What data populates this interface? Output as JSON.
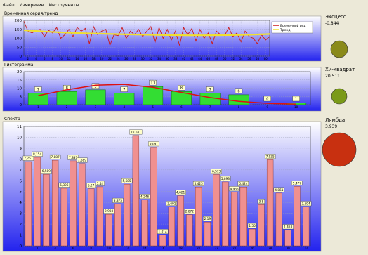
{
  "menu": [
    "Файл",
    "Измерение",
    "Инструменты"
  ],
  "panels": {
    "timeseries_title": "Временная серия/тренд",
    "histogram_title": "Гистограмма",
    "spectrum_title": "Спектр"
  },
  "stats": [
    {
      "label": "Эксцесс",
      "value": "-0.844",
      "color": "#8a8a1a"
    },
    {
      "label": "Хи-квадрат",
      "value": "20.511",
      "color": "#7a9a18"
    },
    {
      "label": "Лямбда",
      "value": "3.939",
      "color": "#c83010"
    }
  ],
  "chart_data": [
    {
      "type": "line",
      "title": "Временная серия/тренд",
      "ylim": [
        0,
        200
      ],
      "yticks": [
        0,
        50,
        100,
        150,
        200
      ],
      "xticks": [
        "2",
        "4",
        "6",
        "8",
        "10",
        "12",
        "14",
        "16",
        "18",
        "20",
        "22",
        "24",
        "26",
        "28",
        "30",
        "32",
        "34",
        "36",
        "38",
        "40",
        "42",
        "44",
        "46",
        "48",
        "50",
        "52",
        "54",
        "56",
        "58",
        "60"
      ],
      "xlim": [
        1,
        61
      ],
      "series": [
        {
          "name": "Временной ряд",
          "color": "#cc1a1a",
          "x": [
            1,
            2,
            3,
            4,
            5,
            6,
            7,
            8,
            9,
            10,
            11,
            12,
            13,
            14,
            15,
            16,
            17,
            18,
            19,
            20,
            21,
            22,
            23,
            24,
            25,
            26,
            27,
            28,
            29,
            30,
            31,
            32,
            33,
            34,
            35,
            36,
            37,
            38,
            39,
            40,
            41,
            42,
            43,
            44,
            45,
            46,
            47,
            48,
            49,
            50,
            51,
            52,
            53,
            54,
            55,
            56,
            57,
            58,
            59,
            60,
            61
          ],
          "y": [
            195,
            140,
            130,
            145,
            150,
            110,
            145,
            130,
            160,
            100,
            120,
            150,
            110,
            160,
            140,
            155,
            70,
            165,
            120,
            140,
            150,
            60,
            120,
            115,
            160,
            100,
            140,
            120,
            150,
            110,
            140,
            165,
            75,
            160,
            100,
            150,
            90,
            140,
            60,
            160,
            120,
            155,
            85,
            150,
            100,
            130,
            70,
            140,
            120,
            115,
            160,
            110,
            130,
            80,
            140,
            110,
            100,
            70,
            120,
            90,
            110
          ]
        },
        {
          "name": "Тренд",
          "color": "#f0e030",
          "x": [
            1,
            6,
            11,
            16,
            21,
            26,
            31,
            36,
            41,
            46,
            51,
            56,
            61
          ],
          "y": [
            145,
            138,
            132,
            128,
            125,
            122,
            120,
            118,
            117,
            117,
            118,
            120,
            124
          ]
        }
      ],
      "legend_position": "top-right"
    },
    {
      "type": "bar",
      "title": "Гистограмма",
      "ylim": [
        0,
        20
      ],
      "yticks": [
        0,
        5,
        10,
        15,
        20
      ],
      "categories": [
        "1",
        "2",
        "3",
        "4",
        "5",
        "6",
        "7",
        "8",
        "9",
        "10"
      ],
      "values": [
        7,
        8,
        9,
        7,
        11,
        8,
        7,
        6,
        0,
        1
      ],
      "fit_curve": [
        5.5,
        9.0,
        11.8,
        12.3,
        10.5,
        7.4,
        4.3,
        2.0,
        0.8,
        0.3
      ],
      "bar_color": "#33dd33",
      "curve_color": "#dd1111"
    },
    {
      "type": "bar",
      "title": "Спектр",
      "ylim": [
        0,
        11
      ],
      "yticks": [
        0,
        1,
        2,
        3,
        4,
        5,
        6,
        7,
        8,
        9,
        10,
        11
      ],
      "xticks": [
        "2",
        "4",
        "6",
        "8",
        "10",
        "12",
        "14",
        "16",
        "18",
        "20",
        "22",
        "24",
        "26",
        "28",
        "30",
        "32"
      ],
      "values": [
        7.767,
        8.154,
        6.589,
        7.887,
        5.306,
        7.837,
        7.589,
        5.27,
        5.44,
        2.903,
        3.875,
        5.685,
        10.181,
        4.246,
        9.091,
        1.014,
        3.601,
        4.621,
        2.872,
        5.425,
        2.19,
        6.573,
        5.893,
        4.955,
        5.424,
        1.55,
        3.8,
        7.935,
        4.861,
        1.453,
        5.477,
        3.594
      ],
      "labels": [
        "7,767",
        "8,154",
        "6,589",
        "7,887",
        "5,306",
        "7,837",
        "7,589",
        "5,27",
        "5,44",
        "2,903",
        "3,875",
        "5,685",
        "10,181",
        "4,246",
        "9,091",
        "1,014",
        "3,601",
        "4,621",
        "2,872",
        "5,425",
        "2,19",
        "6,573",
        "5,893",
        "4,955",
        "5,424",
        "1,55",
        "3,8",
        "7,935",
        "4,861",
        "1,453",
        "5,477",
        "3,594"
      ],
      "bar_color": "#f09090"
    }
  ]
}
